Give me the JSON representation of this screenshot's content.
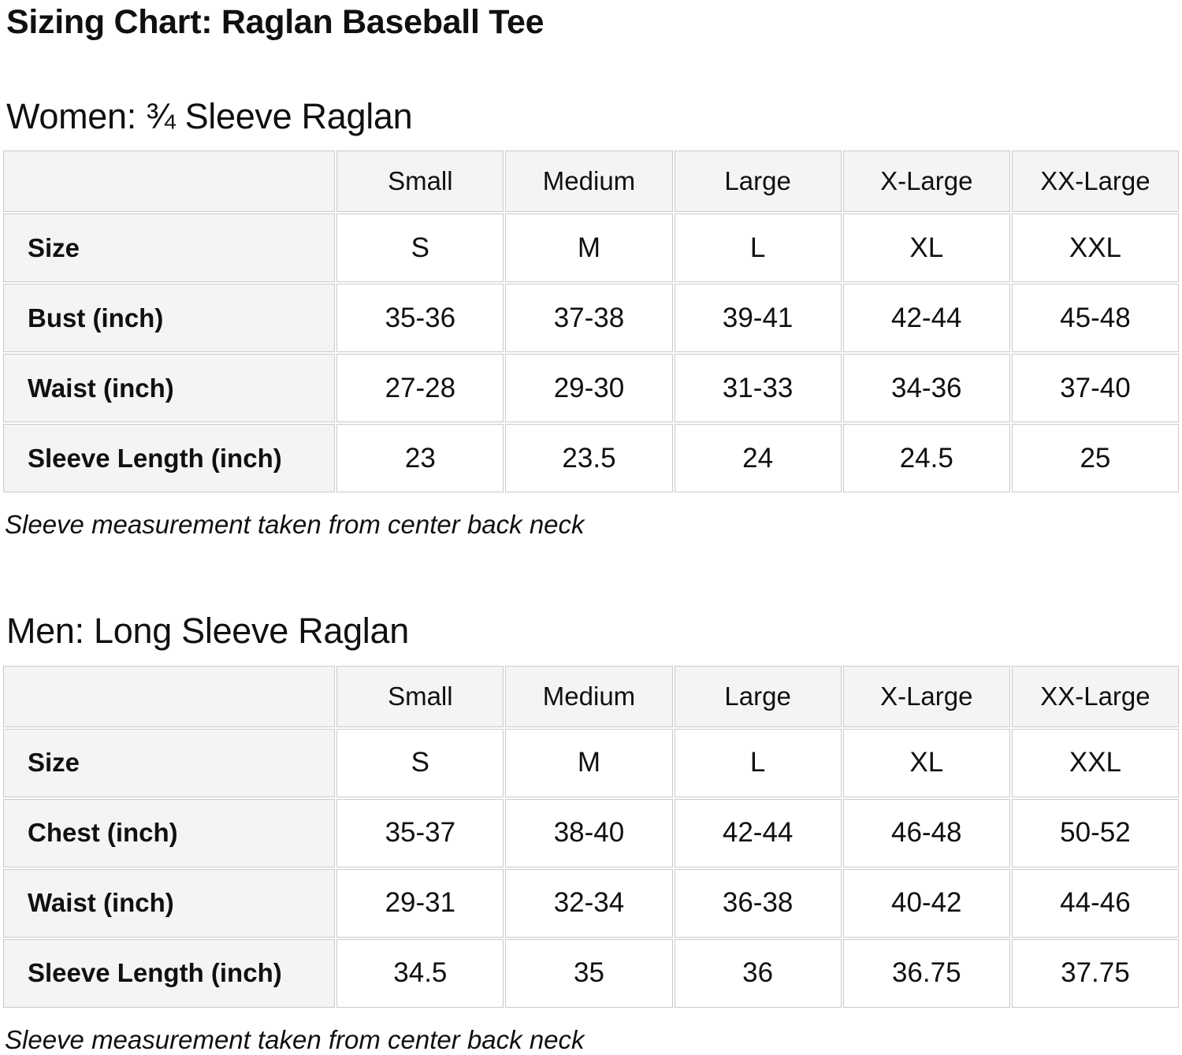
{
  "page": {
    "title": "Sizing Chart: Raglan Baseball Tee"
  },
  "colors": {
    "page_bg": "#ffffff",
    "header_cell_bg": "#f4f4f4",
    "cell_border": "#c9cacb",
    "text": "#0f1111"
  },
  "sections": [
    {
      "heading": "Women: ¾ Sleeve Raglan",
      "note": "Sleeve measurement taken from center back neck",
      "table": {
        "columns": [
          "Small",
          "Medium",
          "Large",
          "X-Large",
          "XX-Large"
        ],
        "rows": [
          {
            "label": "Size",
            "values": [
              "S",
              "M",
              "L",
              "XL",
              "XXL"
            ]
          },
          {
            "label": "Bust (inch)",
            "values": [
              "35-36",
              "37-38",
              "39-41",
              "42-44",
              "45-48"
            ]
          },
          {
            "label": "Waist (inch)",
            "values": [
              "27-28",
              "29-30",
              "31-33",
              "34-36",
              "37-40"
            ]
          },
          {
            "label": "Sleeve Length (inch)",
            "values": [
              "23",
              "23.5",
              "24",
              "24.5",
              "25"
            ]
          }
        ]
      }
    },
    {
      "heading": "Men: Long Sleeve Raglan",
      "note": "Sleeve measurement taken from center back neck",
      "table": {
        "columns": [
          "Small",
          "Medium",
          "Large",
          "X-Large",
          "XX-Large"
        ],
        "rows": [
          {
            "label": "Size",
            "values": [
              "S",
              "M",
              "L",
              "XL",
              "XXL"
            ]
          },
          {
            "label": "Chest (inch)",
            "values": [
              "35-37",
              "38-40",
              "42-44",
              "46-48",
              "50-52"
            ]
          },
          {
            "label": "Waist (inch)",
            "values": [
              "29-31",
              "32-34",
              "36-38",
              "40-42",
              "44-46"
            ]
          },
          {
            "label": "Sleeve Length (inch)",
            "values": [
              "34.5",
              "35",
              "36",
              "36.75",
              "37.75"
            ]
          }
        ]
      }
    }
  ]
}
